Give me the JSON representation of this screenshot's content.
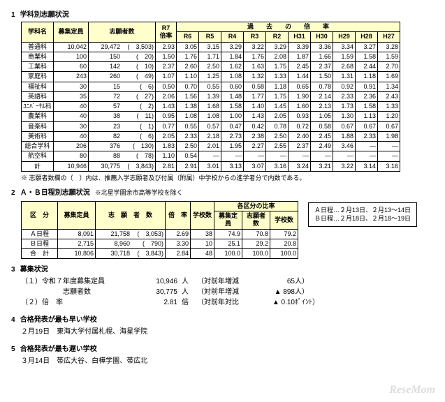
{
  "sec1": {
    "num": "1",
    "title": "学科別志願状況",
    "cols": {
      "name": "学科名",
      "capacity": "募集定員",
      "applicants": "志願者数",
      "r7rate": "R7\n倍率",
      "past_header": "過　　去　　の　　倍　　率",
      "past": [
        "R6",
        "R5",
        "R4",
        "R3",
        "R2",
        "H31",
        "H30",
        "H29",
        "H28",
        "H27"
      ]
    },
    "rows": [
      {
        "name": "普通科",
        "cap": "10,042",
        "app_a": "29,472",
        "app_b": "3,503",
        "r7": "2.93",
        "past": [
          "3.05",
          "3.15",
          "3.29",
          "3.22",
          "3.29",
          "3.39",
          "3.36",
          "3.34",
          "3.27",
          "3.28"
        ]
      },
      {
        "name": "商業科",
        "cap": "100",
        "app_a": "150",
        "app_b": "20",
        "r7": "1.50",
        "past": [
          "1.76",
          "1.71",
          "1.84",
          "1.76",
          "2.08",
          "1.87",
          "1.66",
          "1.59",
          "1.58",
          "1.59"
        ]
      },
      {
        "name": "工業科",
        "cap": "60",
        "app_a": "142",
        "app_b": "10",
        "r7": "2.37",
        "past": [
          "2.60",
          "2.50",
          "1.62",
          "1.63",
          "1.75",
          "2.45",
          "2.37",
          "2.68",
          "2.44",
          "2.70"
        ]
      },
      {
        "name": "家庭科",
        "cap": "243",
        "app_a": "260",
        "app_b": "49",
        "r7": "1.07",
        "past": [
          "1.10",
          "1.25",
          "1.08",
          "1.32",
          "1.33",
          "1.44",
          "1.50",
          "1.31",
          "1.18",
          "1.69"
        ]
      },
      {
        "name": "福祉科",
        "cap": "30",
        "app_a": "15",
        "app_b": "6",
        "r7": "0.50",
        "past": [
          "0.70",
          "0.55",
          "0.60",
          "0.58",
          "1.18",
          "0.65",
          "0.78",
          "0.92",
          "0.91",
          "1.34"
        ]
      },
      {
        "name": "英語科",
        "cap": "35",
        "app_a": "72",
        "app_b": "27",
        "r7": "2.06",
        "past": [
          "1.56",
          "1.39",
          "1.48",
          "1.77",
          "1.75",
          "1.90",
          "2.14",
          "2.33",
          "2.36",
          "2.43"
        ]
      },
      {
        "name": "ﾕﾆﾊﾞｰｻﾙ科",
        "cap": "40",
        "app_a": "57",
        "app_b": "2",
        "r7": "1.43",
        "past": [
          "1.38",
          "1.68",
          "1.58",
          "1.40",
          "1.45",
          "1.60",
          "2.13",
          "1.73",
          "1.58",
          "1.33"
        ]
      },
      {
        "name": "農業科",
        "cap": "40",
        "app_a": "38",
        "app_b": "11",
        "r7": "0.95",
        "past": [
          "1.08",
          "1.08",
          "1.00",
          "1.43",
          "2.05",
          "0.93",
          "1.05",
          "1.30",
          "1.13",
          "1.20"
        ]
      },
      {
        "name": "音楽科",
        "cap": "30",
        "app_a": "23",
        "app_b": "1",
        "r7": "0.77",
        "past": [
          "0.55",
          "0.57",
          "0.47",
          "0.42",
          "0.78",
          "0.72",
          "0.58",
          "0.67",
          "0.67",
          "0.67"
        ]
      },
      {
        "name": "美術科",
        "cap": "40",
        "app_a": "82",
        "app_b": "6",
        "r7": "2.05",
        "past": [
          "2.33",
          "2.18",
          "2.73",
          "2.38",
          "2.50",
          "2.40",
          "2.45",
          "1.88",
          "2.33",
          "1.98"
        ]
      },
      {
        "name": "総合学科",
        "cap": "206",
        "app_a": "376",
        "app_b": "130",
        "r7": "1.83",
        "past": [
          "2.50",
          "2.01",
          "1.95",
          "2.27",
          "2.55",
          "2.37",
          "2.49",
          "3.46",
          "—",
          "—"
        ]
      },
      {
        "name": "航空科",
        "cap": "80",
        "app_a": "88",
        "app_b": "78",
        "r7": "1.10",
        "past": [
          "0.54",
          "—",
          "—",
          "—",
          "—",
          "—",
          "—",
          "—",
          "—",
          "—"
        ]
      },
      {
        "name": "計",
        "cap": "10,946",
        "app_a": "30,775",
        "app_b": "3,843",
        "r7": "2.81",
        "past": [
          "2.91",
          "3.01",
          "3.13",
          "3.07",
          "3.16",
          "3.24",
          "3.21",
          "3.22",
          "3.14",
          "3.16"
        ]
      }
    ],
    "footnote": "※ 志願者数欄の（　）内は、推薦入学志願者及び付属（附属）中学校からの進学者分で内数である。"
  },
  "sec2": {
    "num": "2",
    "title": "Ａ・Ｂ日程別志願状況",
    "title_note": "※北星学園余市高等学校を除く",
    "cols": {
      "kubun": "区　分",
      "capacity": "募集定員",
      "applicants": "志　願　者　数",
      "rate": "倍　率",
      "schools": "学校数",
      "pct_header": "各区分の比率",
      "pct": [
        "募集定員",
        "志願者数",
        "学校数"
      ]
    },
    "rows": [
      {
        "k": "Ａ日程",
        "cap": "8,091",
        "app_a": "21,758",
        "app_b": "3,053",
        "rate": "2.69",
        "sch": "38",
        "p_cap": "74.9",
        "p_app": "70.8",
        "p_sch": "79.2"
      },
      {
        "k": "Ｂ日程",
        "cap": "2,715",
        "app_a": "8,960",
        "app_b": "790",
        "rate": "3.30",
        "sch": "10",
        "p_cap": "25.1",
        "p_app": "29.2",
        "p_sch": "20.8"
      },
      {
        "k": "合　計",
        "cap": "10,806",
        "app_a": "30,718",
        "app_b": "3,843",
        "rate": "2.84",
        "sch": "48",
        "p_cap": "100.0",
        "p_app": "100.0",
        "p_sch": "100.0"
      }
    ],
    "datebox": {
      "a": "Ａ日程…２月13日、２月13～14日",
      "b": "Ｂ日程…２月18日、２月18～19日"
    }
  },
  "sec3": {
    "num": "3",
    "title": "募集状況",
    "lines": [
      {
        "lab": "（１）令和７年度募集定員",
        "val": "10,946",
        "unit": "人",
        "dlab": "（対前年増減",
        "dval": "65",
        "dunit": "人）"
      },
      {
        "lab": "　　　　　　志願者数",
        "val": "30,775",
        "unit": "人",
        "dlab": "（対前年増減",
        "dval": "▲ 898",
        "dunit": "人）"
      },
      {
        "lab": "（２）倍　率",
        "val": "2.81",
        "unit": "倍",
        "dlab": "（対前年対比",
        "dval": "▲ 0.10",
        "dunit": "ﾎﾟｲﾝﾄ）"
      }
    ]
  },
  "sec4": {
    "num": "4",
    "title": "合格発表が最も早い学校",
    "body": "２月19日　東海大学付属札幌、海星学院"
  },
  "sec5": {
    "num": "5",
    "title": "合格発表が最も遅い学校",
    "body": "３月14日　帯広大谷、白樺学園、帯広北"
  },
  "watermark": "ReseMom"
}
